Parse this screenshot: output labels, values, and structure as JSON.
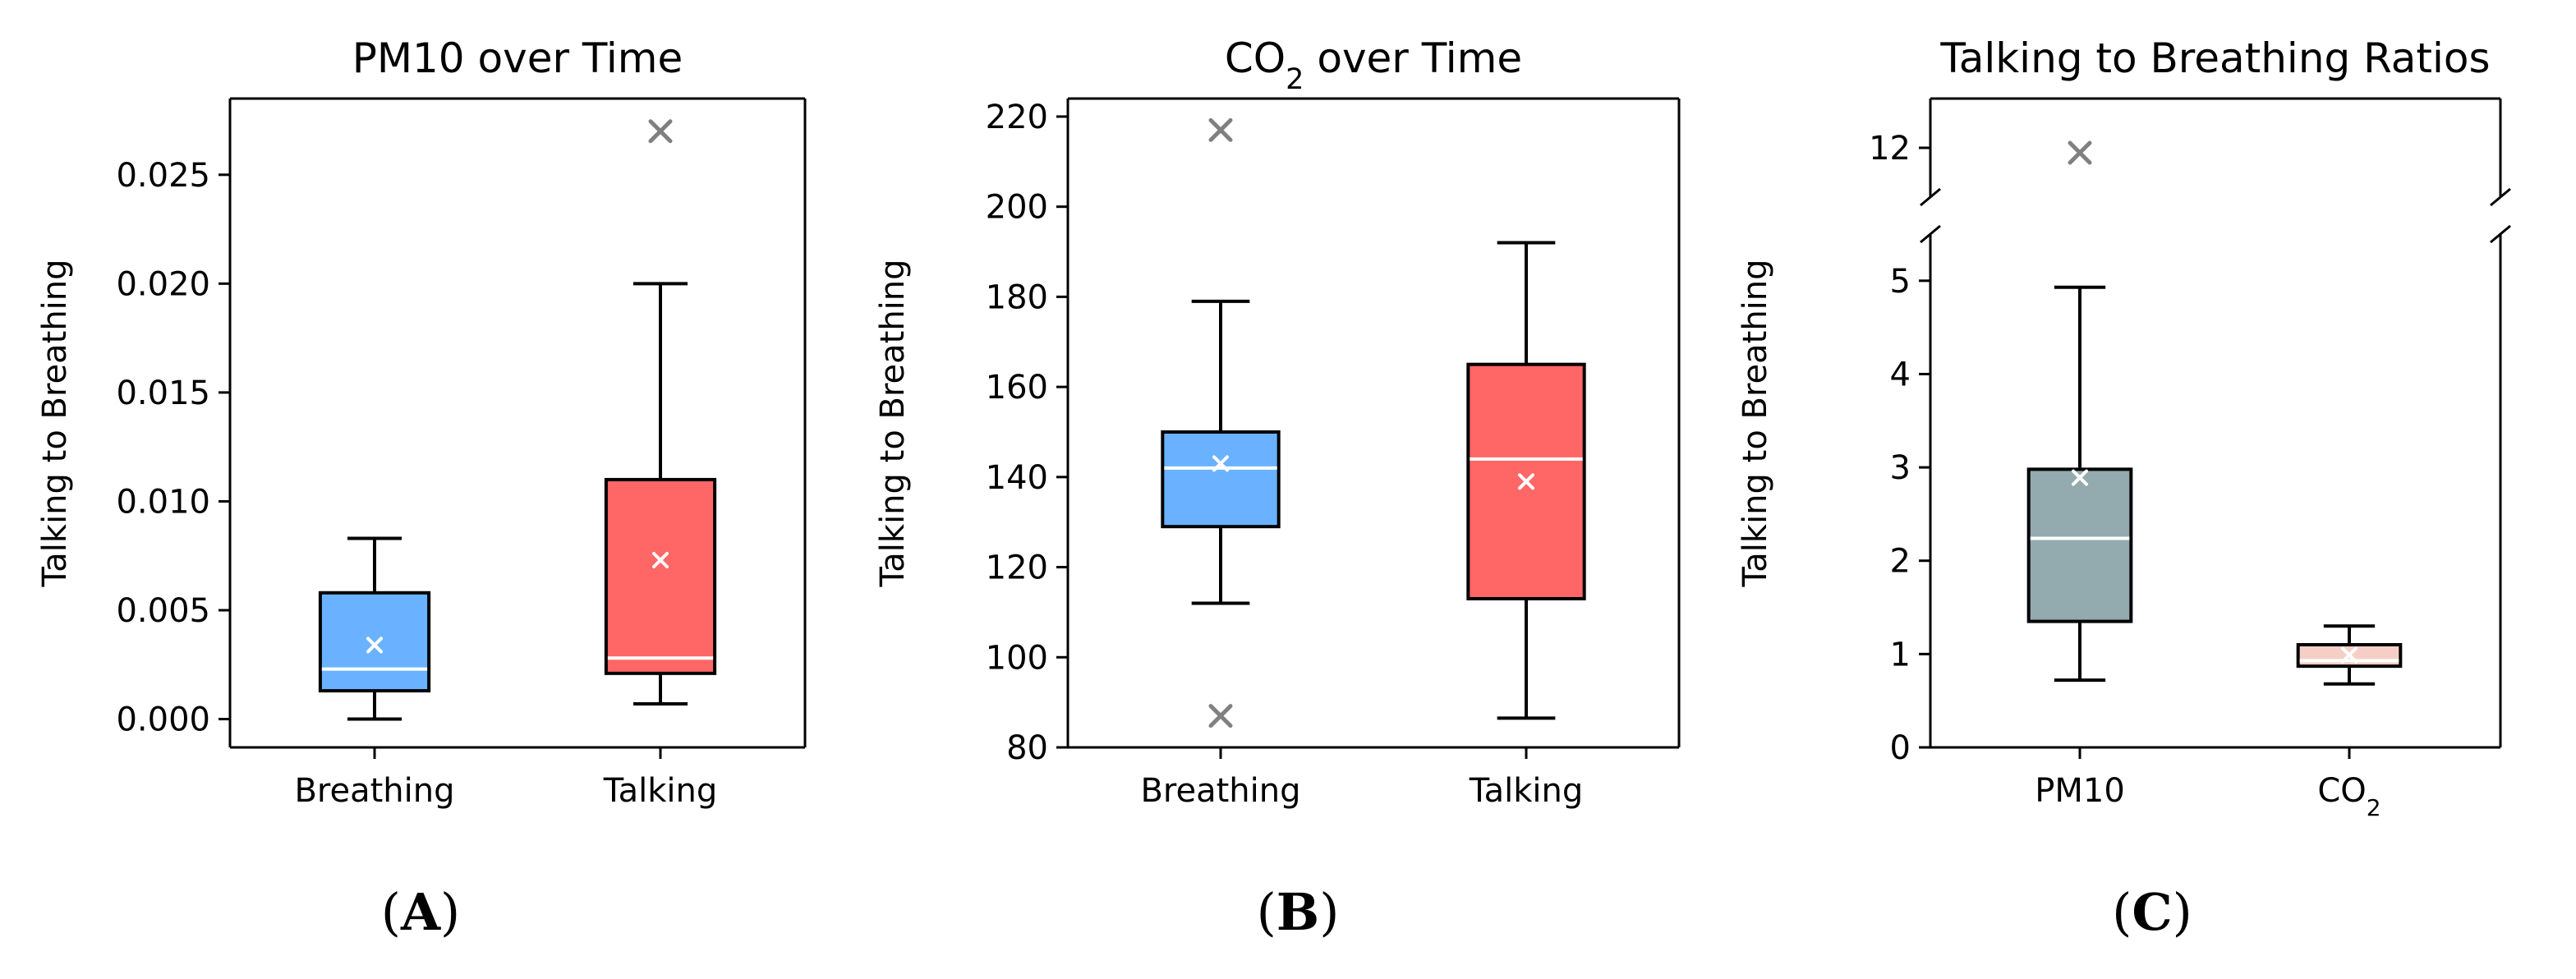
{
  "chart_data": [
    {
      "type": "box",
      "panel_label": "A",
      "title_pre": "PM10 over Time",
      "title_sub": "",
      "title_post": "",
      "ylabel": "Talking to Breathing",
      "ylim": [
        -0.0013,
        0.0285
      ],
      "yticks": [
        0.0,
        0.005,
        0.01,
        0.015,
        0.02,
        0.025
      ],
      "ytick_labels": [
        "0.000",
        "0.005",
        "0.010",
        "0.015",
        "0.020",
        "0.025"
      ],
      "boxes": [
        {
          "label": "Breathing",
          "label_sub": "",
          "color": "#6ab2ff",
          "whisker_low": 0.0,
          "q1": 0.0013,
          "median": 0.0023,
          "q3": 0.0058,
          "whisker_high": 0.0083,
          "mean": 0.0034,
          "outliers": []
        },
        {
          "label": "Talking",
          "label_sub": "",
          "color": "#ff6666",
          "whisker_low": 0.0007,
          "q1": 0.0021,
          "median": 0.0028,
          "q3": 0.011,
          "whisker_high": 0.02,
          "mean": 0.0073,
          "outliers": [
            0.027
          ]
        }
      ]
    },
    {
      "type": "box",
      "panel_label": "B",
      "title_pre": "CO",
      "title_sub": "2",
      "title_post": " over Time",
      "ylabel": "Talking to Breathing",
      "ylim": [
        80,
        224
      ],
      "yticks": [
        80,
        100,
        120,
        140,
        160,
        180,
        200,
        220
      ],
      "ytick_labels": [
        "80",
        "100",
        "120",
        "140",
        "160",
        "180",
        "200",
        "220"
      ],
      "boxes": [
        {
          "label": "Breathing",
          "label_sub": "",
          "color": "#6ab2ff",
          "whisker_low": 112,
          "q1": 129,
          "median": 142,
          "q3": 150,
          "whisker_high": 179,
          "mean": 143,
          "outliers": [
            217,
            87
          ]
        },
        {
          "label": "Talking",
          "label_sub": "",
          "color": "#ff6666",
          "whisker_low": 86.5,
          "q1": 113,
          "median": 144,
          "q3": 165,
          "whisker_high": 192,
          "mean": 139,
          "outliers": []
        }
      ]
    },
    {
      "type": "box",
      "panel_label": "C",
      "title_pre": "Talking to Breathing Ratios",
      "title_sub": "",
      "title_post": "",
      "ylabel": "Talking to Breathing",
      "broken_axis": true,
      "ylim_upper": [
        11.0,
        13.0
      ],
      "yticks_upper": [
        12
      ],
      "ytick_labels_upper": [
        "12"
      ],
      "ylim_lower": [
        0,
        5.5
      ],
      "yticks_lower": [
        0,
        1,
        2,
        3,
        4,
        5
      ],
      "ytick_labels_lower": [
        "0",
        "1",
        "2",
        "3",
        "4",
        "5"
      ],
      "boxes": [
        {
          "label": "PM10",
          "label_sub": "",
          "color": "#93abaf",
          "whisker_low": 0.72,
          "q1": 1.35,
          "median": 2.24,
          "q3": 2.98,
          "whisker_high": 4.93,
          "mean": 2.89,
          "outliers": [
            11.9
          ]
        },
        {
          "label": "CO",
          "label_sub": "2",
          "color": "#f5cfc6",
          "whisker_low": 0.68,
          "q1": 0.87,
          "median": 0.93,
          "q3": 1.1,
          "whisker_high": 1.3,
          "mean": 0.99,
          "outliers": []
        }
      ]
    }
  ]
}
